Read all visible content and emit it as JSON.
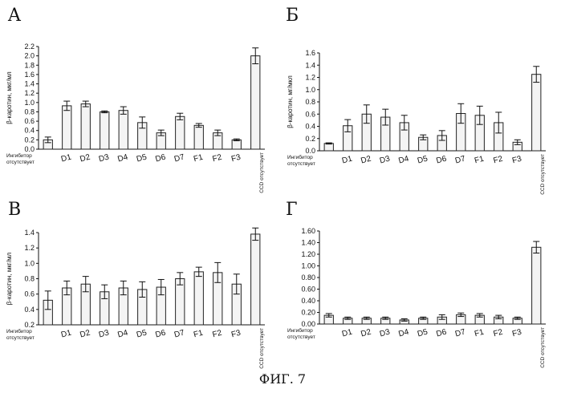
{
  "caption": "ФИГ. 7",
  "chart_data": [
    {
      "type": "bar",
      "panel": "A",
      "ylabel": "β-каротин, мкг/мл",
      "categories": [
        "Ингибитор отсутствует",
        "D1",
        "D2",
        "D3",
        "D4",
        "D5",
        "D6",
        "D7",
        "F1",
        "F2",
        "F3",
        "CCD отсутствует"
      ],
      "values": [
        0.2,
        0.93,
        0.97,
        0.8,
        0.83,
        0.57,
        0.35,
        0.7,
        0.51,
        0.35,
        0.2,
        2.0
      ],
      "errors": [
        0.06,
        0.1,
        0.06,
        0.02,
        0.08,
        0.12,
        0.06,
        0.07,
        0.04,
        0.06,
        0.02,
        0.17
      ],
      "ylim": [
        0,
        2.2
      ],
      "yticks": [
        "0.0",
        "0.2",
        "0.4",
        "0.6",
        "0.8",
        "1.0",
        "1.2",
        "1.4",
        "1.6",
        "1.8",
        "2.0",
        "2.2"
      ]
    },
    {
      "type": "bar",
      "panel": "Б",
      "ylabel": "β-каротин, мг/мкл",
      "categories": [
        "Ингибитор отсутствует",
        "D1",
        "D2",
        "D3",
        "D4",
        "D5",
        "D6",
        "D7",
        "F1",
        "F2",
        "F3",
        "CCD отсутствует"
      ],
      "values": [
        0.12,
        0.41,
        0.6,
        0.55,
        0.46,
        0.22,
        0.25,
        0.61,
        0.58,
        0.46,
        0.14,
        1.25
      ],
      "errors": [
        0.01,
        0.1,
        0.15,
        0.13,
        0.12,
        0.04,
        0.08,
        0.16,
        0.15,
        0.17,
        0.04,
        0.13
      ],
      "ylim": [
        0,
        1.6
      ],
      "yticks": [
        "0.0",
        "0.2",
        "0.4",
        "0.6",
        "0.8",
        "1.0",
        "1.2",
        "1.4",
        "1.6"
      ]
    },
    {
      "type": "bar",
      "panel": "В",
      "ylabel": "β-каротин, мкг/мл",
      "categories": [
        "Ингибитор отсутствует",
        "D1",
        "D2",
        "D3",
        "D4",
        "D5",
        "D6",
        "D7",
        "F1",
        "F2",
        "F3",
        "CCD отсутствует"
      ],
      "values": [
        0.52,
        0.68,
        0.73,
        0.63,
        0.68,
        0.66,
        0.69,
        0.8,
        0.89,
        0.88,
        0.73,
        1.38
      ],
      "errors": [
        0.12,
        0.09,
        0.1,
        0.09,
        0.09,
        0.1,
        0.1,
        0.08,
        0.06,
        0.13,
        0.13,
        0.08
      ],
      "ylim": [
        0.2,
        1.4
      ],
      "yticks": [
        "0.2",
        "0.4",
        "0.6",
        "0.8",
        "1.0",
        "1.2",
        "1.4"
      ]
    },
    {
      "type": "bar",
      "panel": "Г",
      "ylabel": "",
      "categories": [
        "Ингибитор отсутствует",
        "D1",
        "D2",
        "D3",
        "D4",
        "D5",
        "D6",
        "D7",
        "F1",
        "F2",
        "F3",
        "CCD отсутствует"
      ],
      "values": [
        0.15,
        0.1,
        0.1,
        0.1,
        0.07,
        0.1,
        0.12,
        0.16,
        0.15,
        0.12,
        0.1,
        1.32
      ],
      "errors": [
        0.03,
        0.02,
        0.02,
        0.02,
        0.02,
        0.02,
        0.04,
        0.03,
        0.03,
        0.03,
        0.02,
        0.1
      ],
      "ylim": [
        0,
        1.6
      ],
      "yticks": [
        "0.00",
        "0.20",
        "0.40",
        "0.60",
        "0.80",
        "1.00",
        "1.20",
        "1.40",
        "1.60"
      ]
    }
  ]
}
